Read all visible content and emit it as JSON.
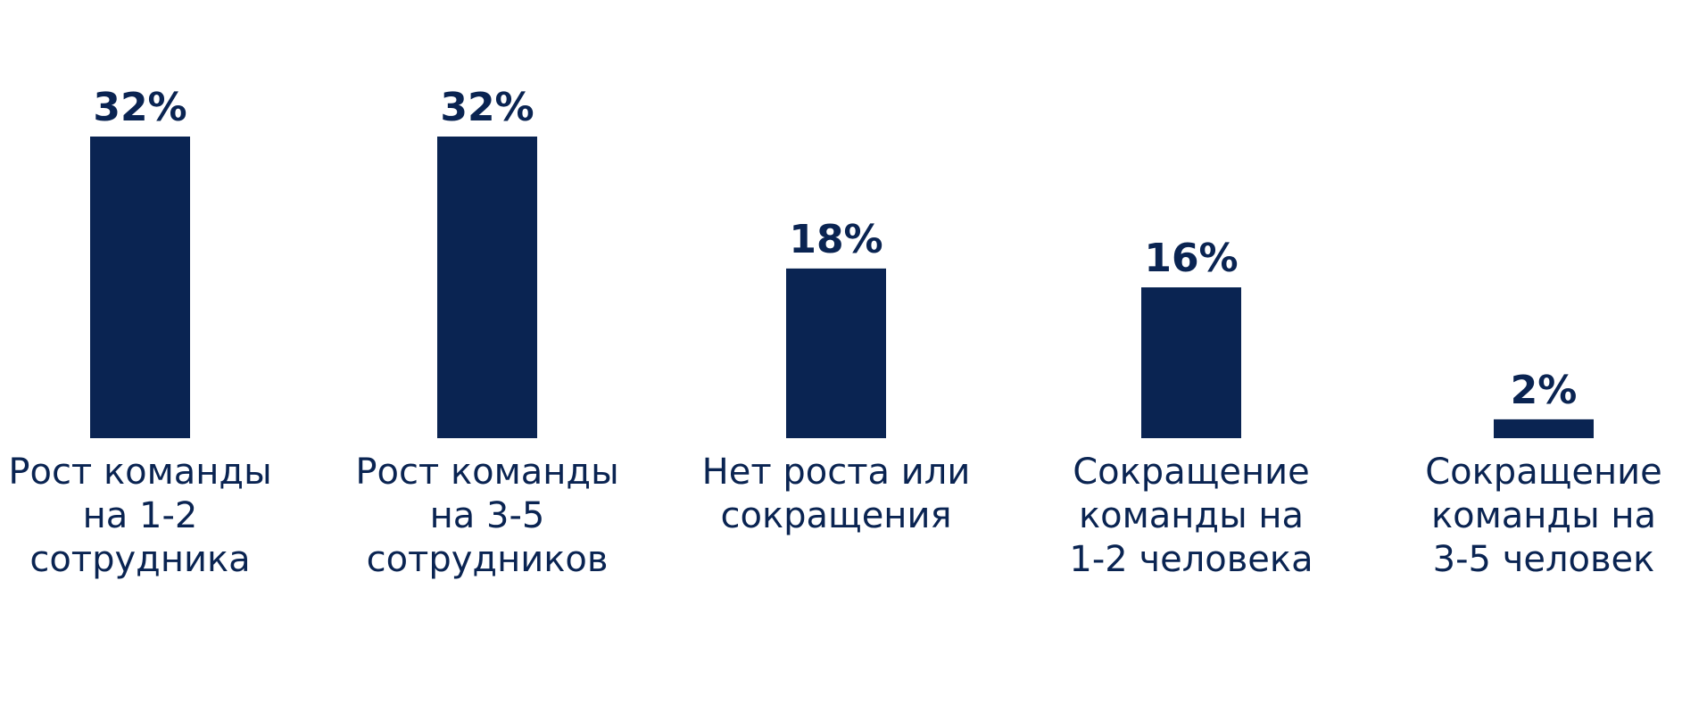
{
  "chart_data": {
    "type": "bar",
    "categories": [
      [
        "Рост команды",
        "на 1-2",
        "сотрудника"
      ],
      [
        "Рост команды",
        "на 3-5",
        "сотрудников"
      ],
      [
        "Нет роста или",
        "сокращения"
      ],
      [
        "Сокращение",
        "команды на",
        "1-2 человека"
      ],
      [
        "Сокращение",
        "команды на",
        "3-5 человек"
      ]
    ],
    "values": [
      32,
      32,
      18,
      16,
      2
    ],
    "value_labels": [
      "32%",
      "32%",
      "18%",
      "16%",
      "2%"
    ],
    "unit": "%",
    "ylim": [
      0,
      32
    ],
    "grid": false,
    "legend": "none",
    "title": "",
    "xlabel": "",
    "ylabel": ""
  },
  "colors": {
    "bar": "#0a2452",
    "text": "#0a2452",
    "background": "#ffffff"
  }
}
